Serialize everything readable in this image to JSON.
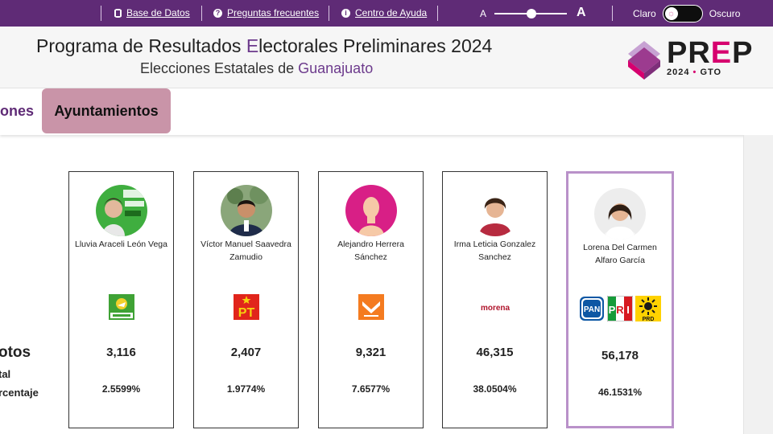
{
  "topbar": {
    "links": [
      {
        "label": "Base de Datos",
        "icon": "database-icon"
      },
      {
        "label": "Preguntas frecuentes",
        "icon": "question-icon"
      },
      {
        "label": "Centro de Ayuda",
        "icon": "info-icon"
      }
    ],
    "font_small": "A",
    "font_big": "A",
    "theme_light": "Claro",
    "theme_dark": "Oscuro"
  },
  "header": {
    "title_pre": "Programa de Resultados ",
    "title_accent": "E",
    "title_post": "lectorales Preliminares 2024",
    "subtitle_pre": "Elecciones Estatales de ",
    "subtitle_accent": "Guanajuato",
    "logo_pre": "PR",
    "logo_accent": "E",
    "logo_post": "P",
    "logo_year": "2024",
    "logo_dot": "•",
    "logo_state": "GTO"
  },
  "tabs": {
    "prev_partial": "ones",
    "active": "Ayuntamientos"
  },
  "rows": {
    "votos": "otos",
    "total": "tal",
    "porcentaje": "rcentaje"
  },
  "candidates": [
    {
      "name": "Lluvia Araceli León Vega",
      "party": "VERDE",
      "votes": "3,116",
      "percent": "2.5599%"
    },
    {
      "name": "Víctor Manuel Saavedra Zamudio",
      "party": "PT",
      "votes": "2,407",
      "percent": "1.9774%"
    },
    {
      "name": "Alejandro Herrera Sánchez",
      "party": "MOVIMIENTO CIUDADANO",
      "votes": "9,321",
      "percent": "7.6577%"
    },
    {
      "name": "Irma Leticia Gonzalez Sanchez",
      "party": "morena",
      "votes": "46,315",
      "percent": "38.0504%"
    },
    {
      "name": "Lorena Del Carmen Alfaro García",
      "party": [
        "PAN",
        "PRI",
        "PRD"
      ],
      "votes": "56,178",
      "percent": "46.1531%"
    }
  ],
  "colors": {
    "topbar": "#5f2b76",
    "active_tab": "#c994a8",
    "winner_border": "#b991c9"
  }
}
